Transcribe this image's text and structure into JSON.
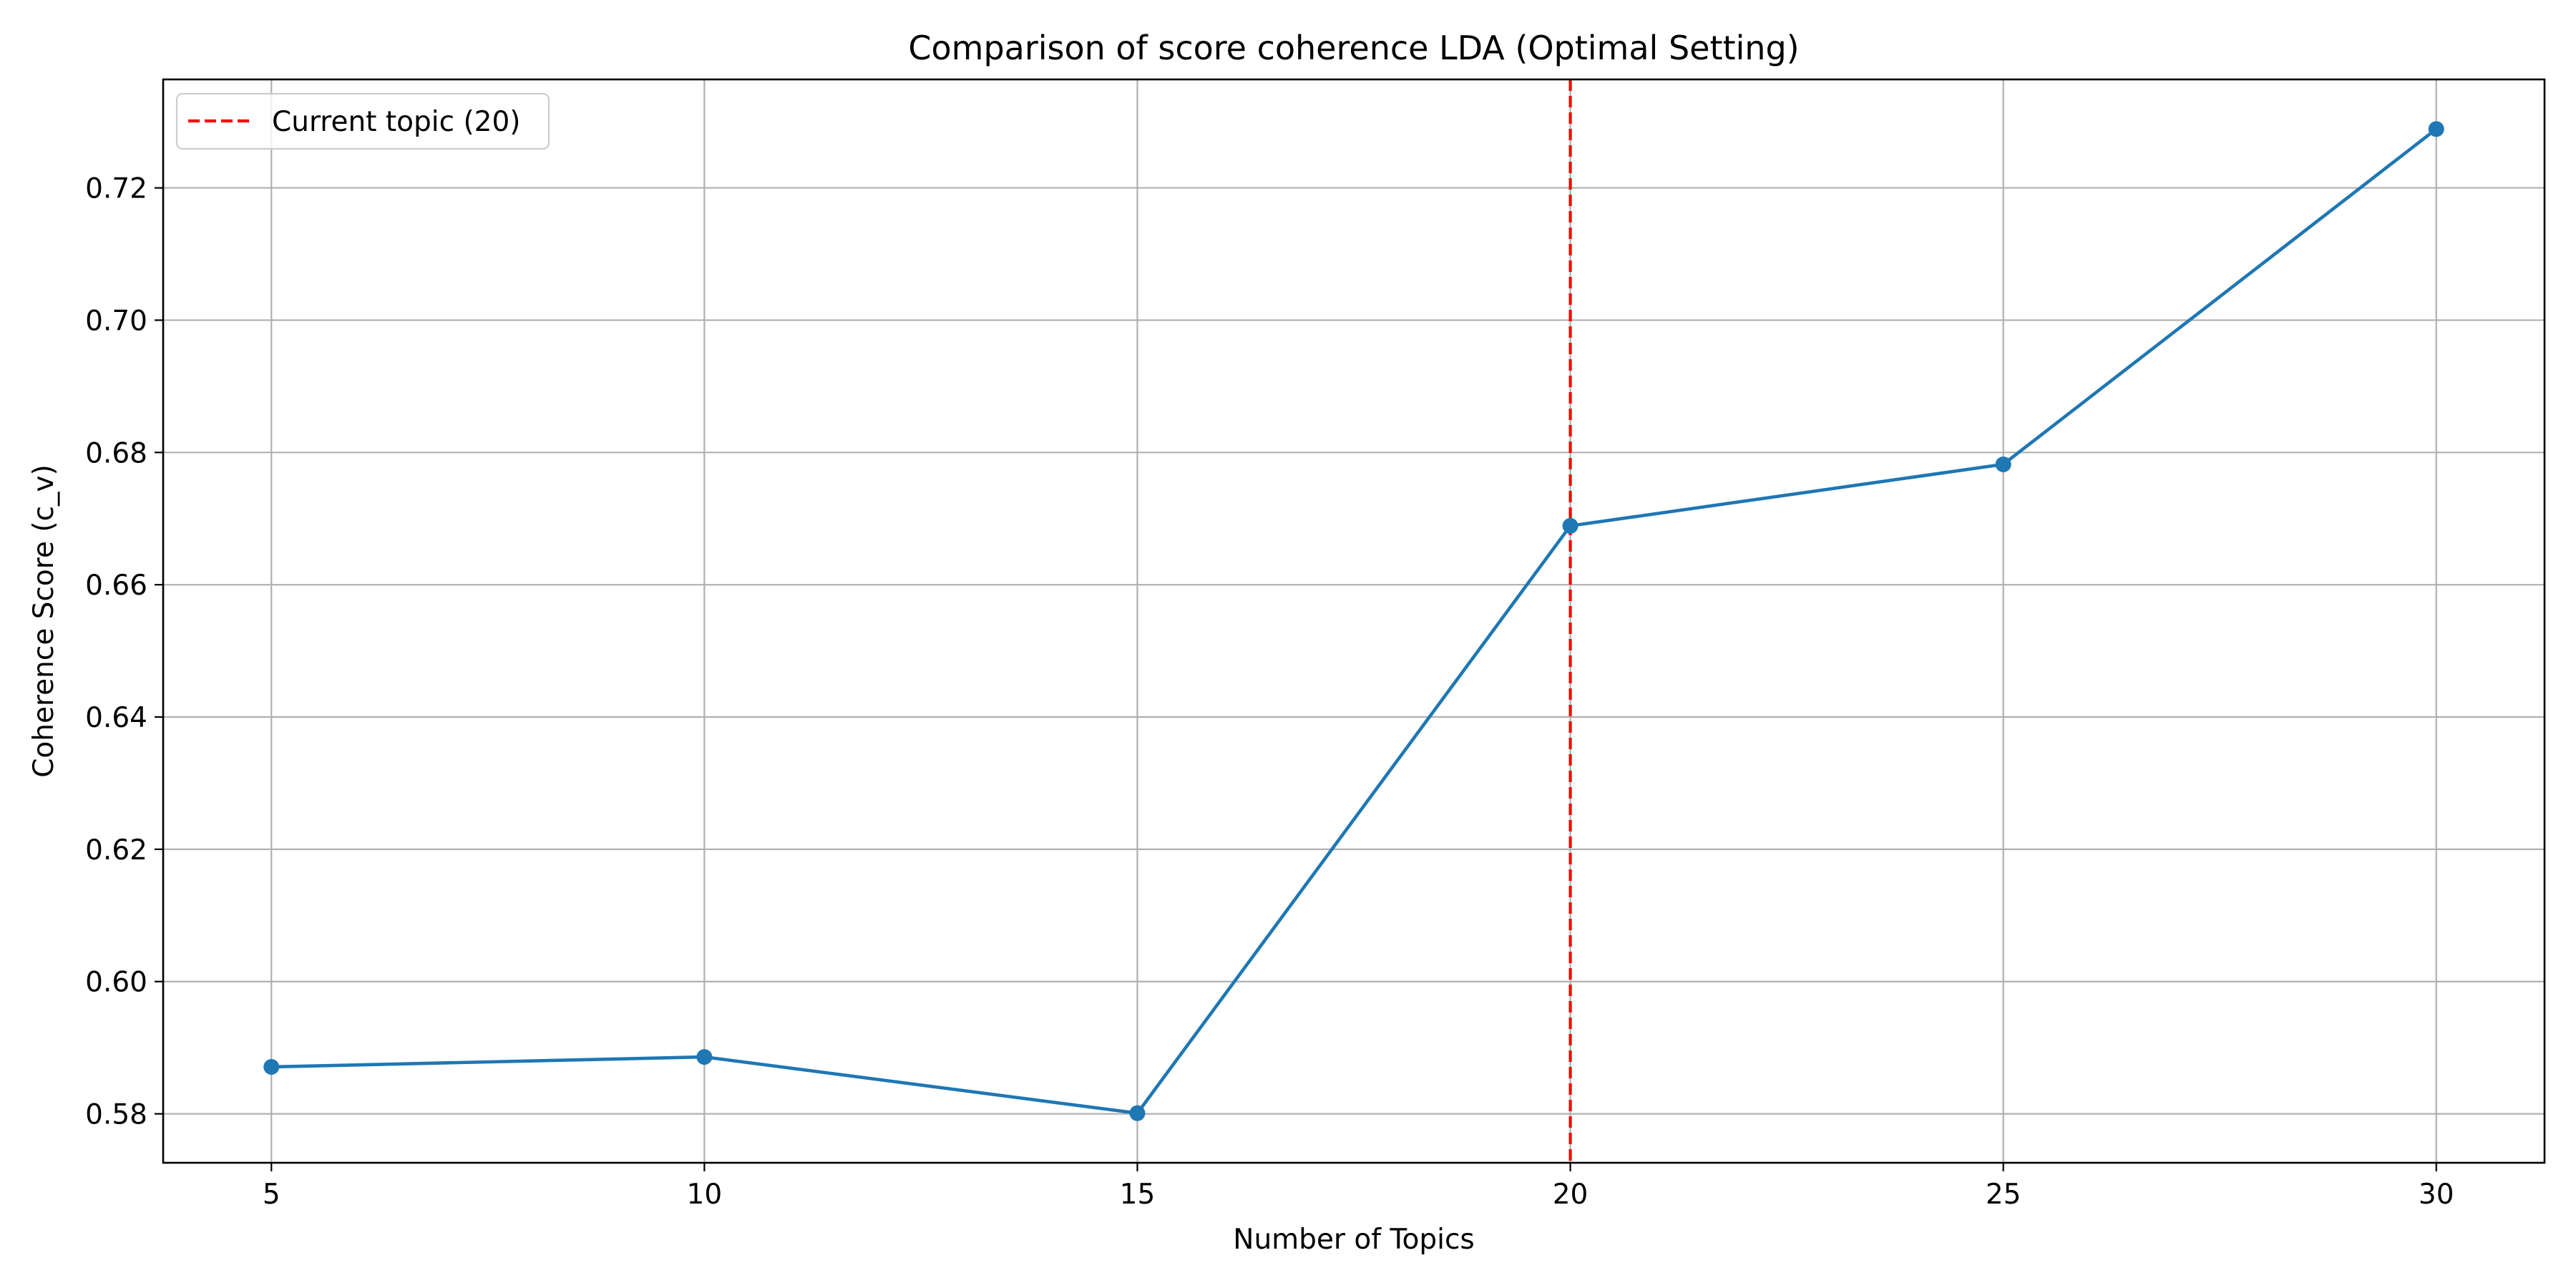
{
  "chart_data": {
    "type": "line",
    "title": "Comparison of score coherence LDA (Optimal Setting)",
    "xlabel": "Number of Topics",
    "ylabel": "Coherence Score (c_v)",
    "x": [
      5,
      10,
      15,
      20,
      25,
      30
    ],
    "series": [
      {
        "values": [
          0.5871,
          0.5886,
          0.5801,
          0.6689,
          0.6782,
          0.7289
        ],
        "color": "#1f77b4",
        "marker": "circle"
      }
    ],
    "reference_lines": [
      {
        "orientation": "vertical",
        "x": 20,
        "label": "Current topic (20)",
        "color": "#ff0000",
        "style": "dashed"
      }
    ],
    "xlim": [
      3.75,
      31.25
    ],
    "ylim": [
      0.5726,
      0.7364
    ],
    "xticks": [
      5,
      10,
      15,
      20,
      25,
      30
    ],
    "yticks": [
      0.58,
      0.6,
      0.62,
      0.64,
      0.66,
      0.68,
      0.7,
      0.72
    ],
    "grid": true,
    "legend_position": "top-left"
  }
}
